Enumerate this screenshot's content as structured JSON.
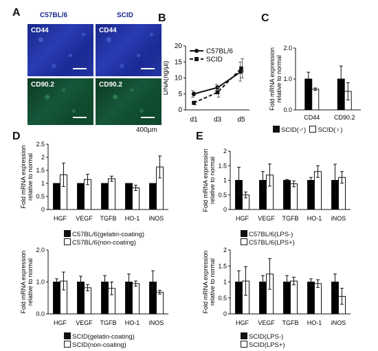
{
  "panels": {
    "A": {
      "letter": "A",
      "columns": [
        "C57BL/6",
        "SCID"
      ],
      "images": [
        {
          "label": "CD44",
          "stain": "blue"
        },
        {
          "label": "CD44",
          "stain": "blue"
        },
        {
          "label": "CD90.2",
          "stain": "green"
        },
        {
          "label": "CD90.2",
          "stain": "green"
        }
      ],
      "scale_text": "400μm"
    },
    "B": {
      "letter": "B"
    },
    "C": {
      "letter": "C"
    },
    "D": {
      "letter": "D"
    },
    "E": {
      "letter": "E"
    }
  },
  "chart_data": [
    {
      "id": "B",
      "type": "line",
      "x": [
        "d1",
        "d3",
        "d5"
      ],
      "ylabel": "DNA(ng/µl)",
      "ylim": [
        0,
        20
      ],
      "yticks": [
        0,
        5,
        10,
        15,
        20
      ],
      "series": [
        {
          "name": "C57BL/6",
          "style": "solid",
          "marker": "circle",
          "values": [
            5,
            7,
            12
          ],
          "err": [
            1,
            1,
            3
          ]
        },
        {
          "name": "SCID",
          "style": "dashed",
          "marker": "square",
          "values": [
            2.2,
            5.5,
            13
          ],
          "err": [
            0.6,
            1.5,
            3
          ]
        }
      ],
      "legend": "top-left"
    },
    {
      "id": "C",
      "type": "bar",
      "categories": [
        "CD44",
        "CD90.2"
      ],
      "ylabel": "Fold mRNA expression relative to normal",
      "ylim": [
        0,
        2.0
      ],
      "yticks": [
        "0.0",
        "1.0",
        "2.0"
      ],
      "series": [
        {
          "name": "SCID(♂)",
          "fill": "#000000",
          "values": [
            1.0,
            1.0
          ],
          "err": [
            0.22,
            0.42
          ]
        },
        {
          "name": "SCID(♀)",
          "fill": "#ffffff",
          "values": [
            0.67,
            0.6
          ],
          "err": [
            0.04,
            0.28
          ]
        }
      ],
      "legend": "bottom"
    },
    {
      "id": "D-top",
      "type": "bar",
      "categories": [
        "HGF",
        "VEGF",
        "TGFB",
        "HO-1",
        "iNOS"
      ],
      "ylabel": "Fold mRNA expression relative to normal",
      "ylim": [
        0,
        2.5
      ],
      "yticks": [
        "0",
        "0.5",
        "1",
        "1.5",
        "2",
        "2.5"
      ],
      "series": [
        {
          "name": "C57BL/6(gelatin-coating)",
          "fill": "#000000",
          "values": [
            1.0,
            1.0,
            1.0,
            1.0,
            1.0
          ],
          "err": [
            0,
            0,
            0,
            0,
            0
          ]
        },
        {
          "name": "C57BL/6(non-coating)",
          "fill": "#ffffff",
          "values": [
            1.33,
            1.15,
            1.18,
            0.83,
            1.63
          ],
          "err": [
            0.45,
            0.2,
            0.1,
            0.1,
            0.42
          ]
        }
      ],
      "legend": "bottom"
    },
    {
      "id": "D-bottom",
      "type": "bar",
      "categories": [
        "HGF",
        "VEGF",
        "TGFB",
        "HO-1",
        "iNOS"
      ],
      "ylabel": "Fold mRNA expression relative to normal",
      "ylim": [
        0,
        2.0
      ],
      "yticks": [
        "0.0",
        "1.0",
        "2.0"
      ],
      "series": [
        {
          "name": "SCID(gelatin-coating)",
          "fill": "#000000",
          "values": [
            1.0,
            1.0,
            1.0,
            1.0,
            1.0
          ],
          "err": [
            0.1,
            0.18,
            0.2,
            0.25,
            0.35
          ]
        },
        {
          "name": "SCID(non-coating)",
          "fill": "#ffffff",
          "values": [
            1.03,
            0.82,
            0.8,
            0.95,
            0.68
          ],
          "err": [
            0.28,
            0.1,
            0.2,
            0.08,
            0.06
          ]
        }
      ],
      "legend": "bottom"
    },
    {
      "id": "E-top",
      "type": "bar",
      "categories": [
        "HGF",
        "VEGF",
        "TGFB",
        "HO-1",
        "iNOS"
      ],
      "ylabel": "Fold mRNA expression relative to normal",
      "ylim": [
        0,
        2.0
      ],
      "yticks": [
        "0",
        "0.5",
        "1",
        "1.5",
        "2"
      ],
      "series": [
        {
          "name": "C57BL/6(LPS-)",
          "fill": "#000000",
          "values": [
            1.0,
            1.0,
            1.0,
            1.0,
            1.0
          ],
          "err": [
            0.45,
            0.3,
            0.03,
            0.1,
            0.55
          ]
        },
        {
          "name": "C57BL/6(LPS+)",
          "fill": "#ffffff",
          "values": [
            0.5,
            1.18,
            0.88,
            1.3,
            1.1
          ],
          "err": [
            0.1,
            0.38,
            0.1,
            0.2,
            0.2
          ]
        }
      ],
      "legend": "bottom"
    },
    {
      "id": "E-bottom",
      "type": "bar",
      "categories": [
        "HGF",
        "VEGF",
        "TGFB",
        "HO-1",
        "iNOS"
      ],
      "ylabel": "Fold mRNA expression relative to normal",
      "ylim": [
        0,
        2.0
      ],
      "yticks": [
        "0",
        "0.5",
        "1",
        "1.5",
        "2"
      ],
      "series": [
        {
          "name": "SCID(LPS-)",
          "fill": "#000000",
          "values": [
            1.0,
            1.0,
            1.0,
            1.0,
            1.0
          ],
          "err": [
            0.35,
            0.2,
            0.2,
            0.1,
            0.25
          ]
        },
        {
          "name": "SCID(LPS+)",
          "fill": "#ffffff",
          "values": [
            1.03,
            1.25,
            1.03,
            0.95,
            0.55
          ],
          "err": [
            0.45,
            0.48,
            0.12,
            0.12,
            0.25
          ]
        }
      ],
      "legend": "bottom"
    }
  ]
}
